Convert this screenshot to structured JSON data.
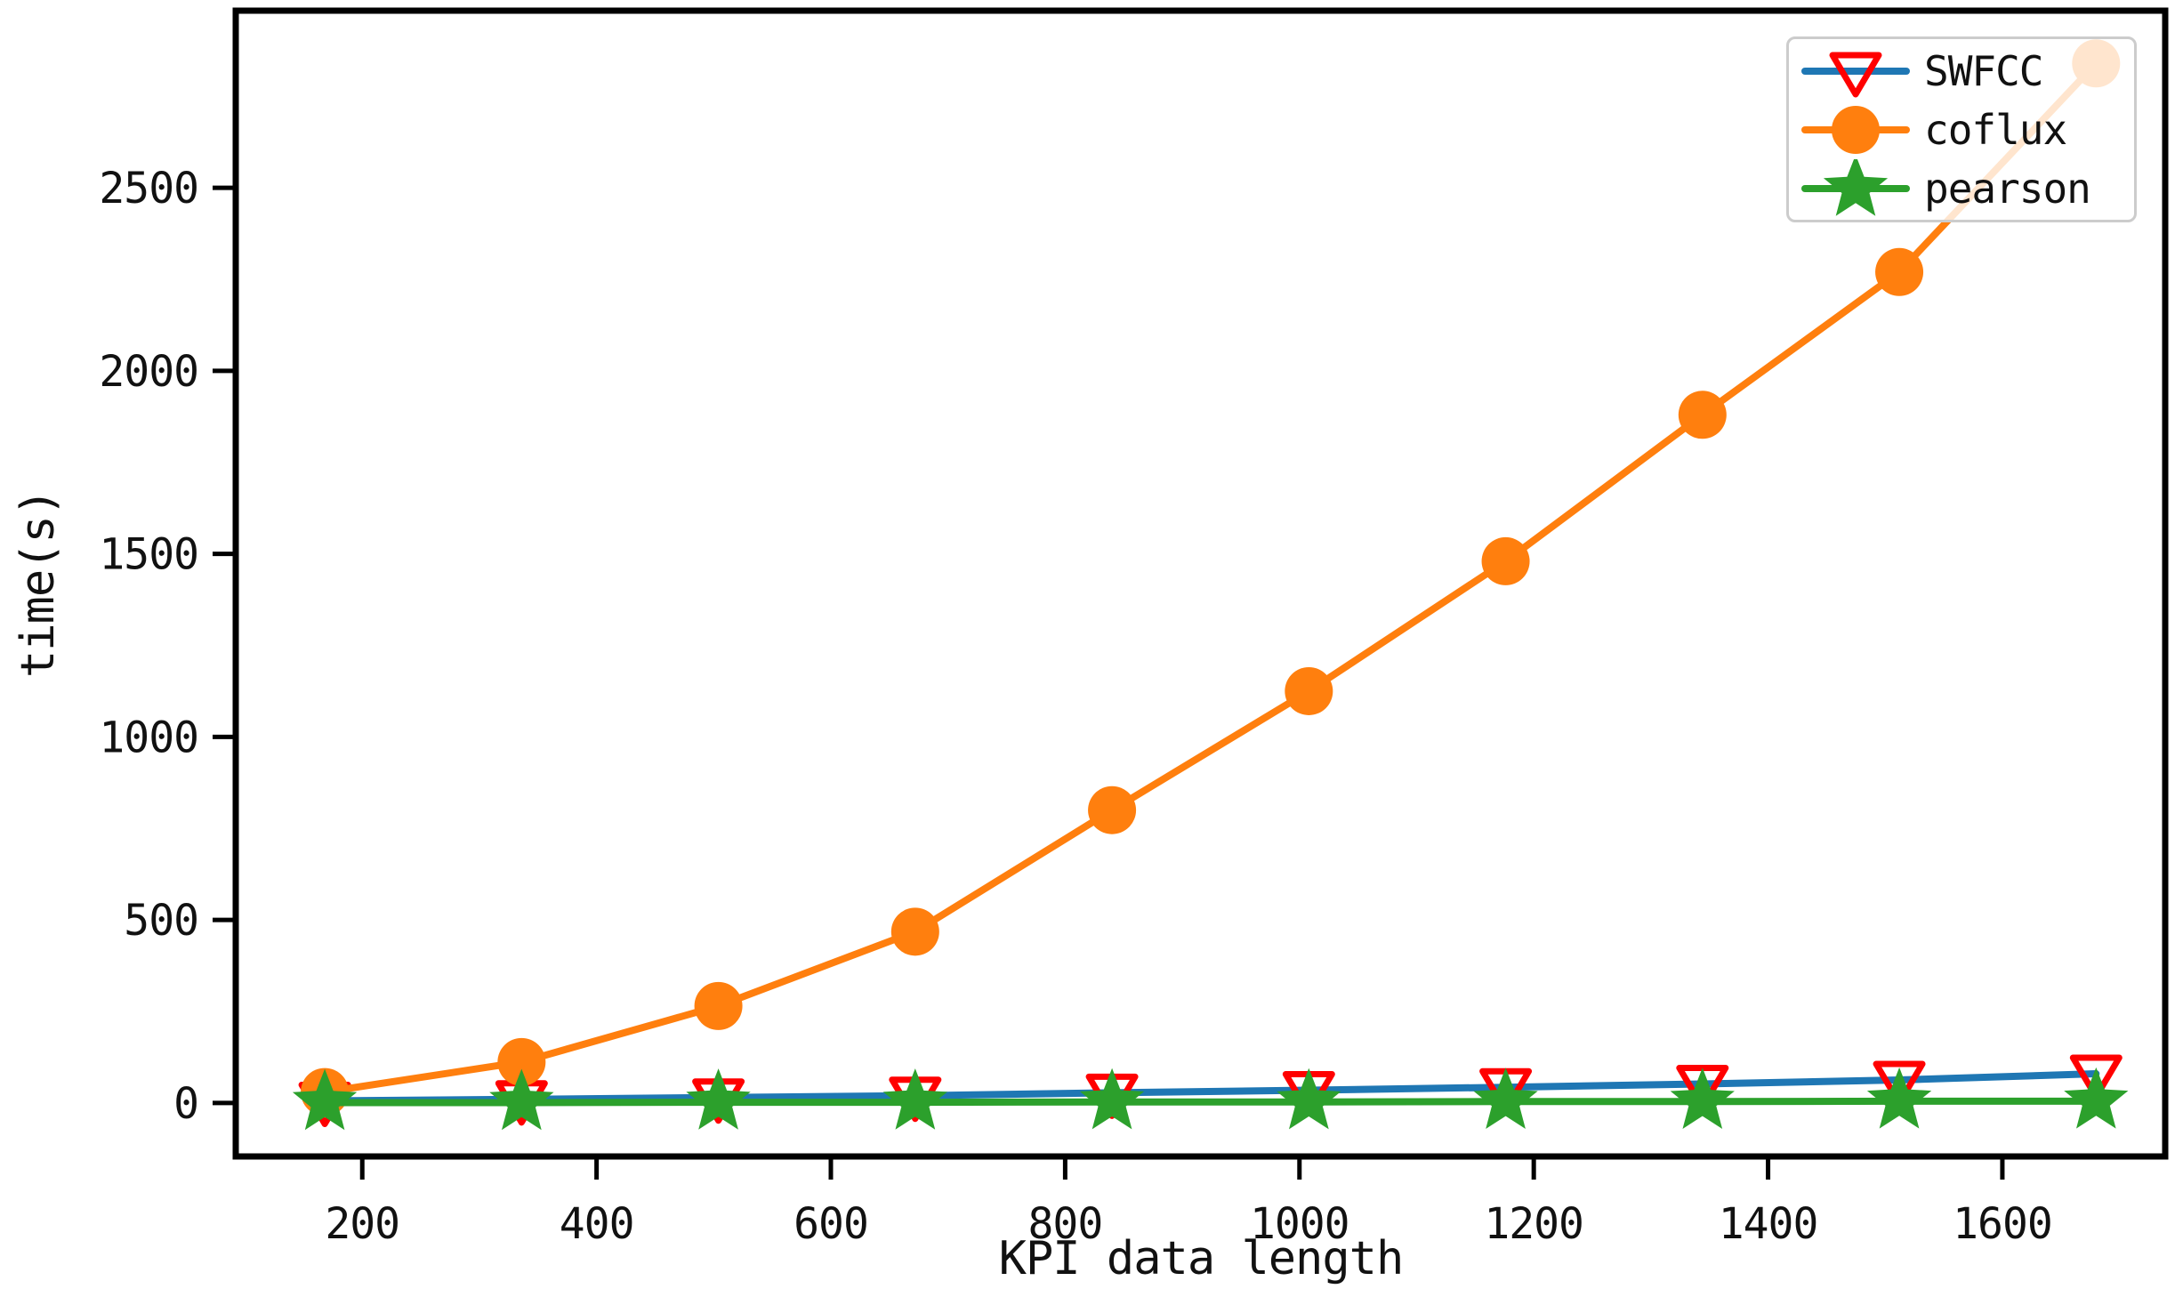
{
  "figure": {
    "xlabel": "KPI data length",
    "ylabel": "time(s)",
    "background": "#ffffff",
    "spine_color": "#000000",
    "text_color": "#111111"
  },
  "legend": {
    "position": "upper right",
    "entries": [
      {
        "label": "SWFCC",
        "line_color": "#1f77b4",
        "marker": "triangle-down-open",
        "marker_color": "#ff0000"
      },
      {
        "label": "coflux",
        "line_color": "#ff7f0e",
        "marker": "circle",
        "marker_color": "#ff7f0e"
      },
      {
        "label": "pearson",
        "line_color": "#2ca02c",
        "marker": "star",
        "marker_color": "#2ca02c"
      }
    ]
  },
  "chart_data": {
    "type": "line",
    "title": "",
    "xlabel": "KPI data length",
    "ylabel": "time(s)",
    "grid": false,
    "legend_position": "upper right",
    "x": [
      168,
      336,
      504,
      672,
      840,
      1008,
      1176,
      1344,
      1512,
      1680
    ],
    "series": [
      {
        "name": "SWFCC",
        "values": [
          6,
          10,
          15,
          20,
          28,
          35,
          43,
          52,
          63,
          80
        ],
        "line_color": "#1f77b4",
        "marker": "triangle-down-open",
        "marker_color": "#ff0000"
      },
      {
        "name": "coflux",
        "values": [
          30,
          112,
          265,
          468,
          800,
          1125,
          1480,
          1880,
          2270,
          2840
        ],
        "line_color": "#ff7f0e",
        "marker": "circle",
        "marker_color": "#ff7f0e"
      },
      {
        "name": "pearson",
        "values": [
          1,
          1,
          2,
          2,
          3,
          3,
          4,
          4,
          5,
          5
        ],
        "line_color": "#2ca02c",
        "marker": "star",
        "marker_color": "#2ca02c"
      }
    ],
    "xlim": [
      92,
      1739
    ],
    "ylim": [
      -146,
      2984
    ],
    "x_tick_values": [
      200,
      400,
      600,
      800,
      1000,
      1200,
      1400,
      1600
    ],
    "x_tick_labels": [
      "200",
      "400",
      "600",
      "800",
      "1000",
      "1200",
      "1400",
      "1600"
    ],
    "y_tick_values": [
      0,
      500,
      1000,
      1500,
      2000,
      2500
    ],
    "y_tick_labels": [
      "0",
      "500",
      "1000",
      "1500",
      "2000",
      "2500"
    ]
  }
}
